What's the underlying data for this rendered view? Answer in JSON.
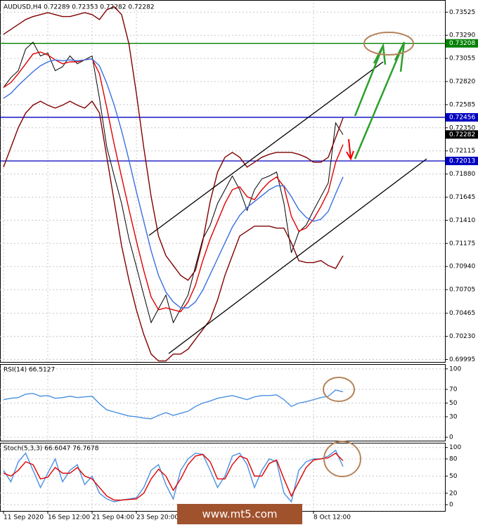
{
  "watermark": "www.mt5.com",
  "chart_data": [
    {
      "type": "line",
      "title": "AUDUSD,H4 0.72289 0.72353 0.72282 0.72282",
      "categories": [
        "11 Sep 2020",
        null,
        null,
        null,
        null,
        null,
        "16 Sep 12:00",
        null,
        null,
        null,
        null,
        null,
        "21 Sep 04:00",
        null,
        null,
        null,
        null,
        null,
        "23 Sep 20:00",
        null,
        null,
        null,
        null,
        null,
        null,
        null,
        null,
        null,
        null,
        null,
        null,
        null,
        null,
        null,
        null,
        null,
        null,
        null,
        null,
        null,
        null,
        null,
        "8 Oct 12:00",
        null,
        null,
        null,
        null
      ],
      "ylim": [
        0.6997,
        0.7362
      ],
      "yticks": [
        0.73525,
        {
          "value": 0.7329,
          "label": "0.73290"
        },
        0.73055,
        {
          "value": 0.7282,
          "label": "0.72820"
        },
        0.72585,
        {
          "value": 0.7235,
          "label": "0.72350"
        },
        0.72115,
        {
          "value": 0.7188,
          "label": "0.71880"
        },
        0.71645,
        {
          "value": 0.7141,
          "label": "0.71410"
        },
        0.71175,
        {
          "value": 0.7094,
          "label": "0.70940"
        },
        0.70705,
        0.70465,
        {
          "value": 0.7023,
          "label": "0.70230"
        },
        0.69995
      ],
      "grid": true,
      "levels": [
        {
          "value": 0.73208,
          "color": "#008000"
        },
        {
          "value": 0.72456,
          "color": "#0000c0"
        },
        {
          "value": 0.72013,
          "color": "#0000c0"
        },
        {
          "value": 0.72282,
          "color": "#000000"
        }
      ],
      "series": [
        {
          "color": "#000000",
          "values": [
            0.7276,
            0.7286,
            0.7293,
            0.7315,
            0.7322,
            0.7308,
            0.7311,
            0.7293,
            0.7297,
            0.7308,
            0.73,
            0.7304,
            0.7308,
            0.7265,
            0.7215,
            0.7186,
            0.7158,
            0.7122,
            0.7094,
            0.7065,
            0.7037,
            0.7051,
            0.7065,
            0.7037,
            0.7051,
            0.7065,
            0.7094,
            0.7122,
            0.7136,
            0.7158,
            0.7172,
            0.7186,
            0.7172,
            0.7151,
            0.7172,
            0.7183,
            0.7186,
            0.719,
            0.7158,
            0.7108,
            0.7129,
            0.7136,
            0.7151,
            0.7165,
            0.7179,
            0.724,
            0.7228
          ]
        },
        {
          "color": "#e00000",
          "values": [
            0.7276,
            0.7281,
            0.729,
            0.73,
            0.731,
            0.7312,
            0.7309,
            0.7304,
            0.73,
            0.7302,
            0.7302,
            0.7304,
            0.7305,
            0.729,
            0.7255,
            0.7218,
            0.7185,
            0.7152,
            0.712,
            0.709,
            0.7063,
            0.705,
            0.7052,
            0.705,
            0.7048,
            0.7058,
            0.7075,
            0.71,
            0.7122,
            0.714,
            0.7158,
            0.7172,
            0.7175,
            0.7165,
            0.7162,
            0.7172,
            0.718,
            0.7185,
            0.7175,
            0.7145,
            0.713,
            0.7133,
            0.7142,
            0.7155,
            0.717,
            0.72,
            0.7218
          ]
        },
        {
          "color": "#3a6fe0",
          "values": [
            0.7265,
            0.727,
            0.7278,
            0.7285,
            0.7292,
            0.7298,
            0.7302,
            0.7304,
            0.7303,
            0.7304,
            0.7303,
            0.7304,
            0.7305,
            0.7298,
            0.728,
            0.7258,
            0.7232,
            0.7202,
            0.717,
            0.714,
            0.711,
            0.7085,
            0.7068,
            0.7058,
            0.7052,
            0.7052,
            0.7058,
            0.707,
            0.7086,
            0.7102,
            0.7118,
            0.7134,
            0.7146,
            0.7154,
            0.716,
            0.7166,
            0.7172,
            0.7176,
            0.7176,
            0.7165,
            0.7152,
            0.7144,
            0.714,
            0.7142,
            0.715,
            0.7168,
            0.7185
          ]
        },
        {
          "color": "#800000",
          "values": [
            0.733,
            0.7335,
            0.734,
            0.7345,
            0.7348,
            0.735,
            0.7352,
            0.735,
            0.7348,
            0.7348,
            0.735,
            0.7352,
            0.735,
            0.7345,
            0.7355,
            0.7358,
            0.735,
            0.732,
            0.727,
            0.7215,
            0.7165,
            0.7125,
            0.7105,
            0.7095,
            0.7085,
            0.708,
            0.709,
            0.712,
            0.716,
            0.719,
            0.7205,
            0.721,
            0.7205,
            0.7195,
            0.72,
            0.7205,
            0.7208,
            0.721,
            0.721,
            0.721,
            0.7208,
            0.7205,
            0.72,
            0.72,
            0.7205,
            0.7225,
            0.7245
          ]
        },
        {
          "color": "#800000",
          "values": [
            0.7195,
            0.7215,
            0.7235,
            0.725,
            0.7258,
            0.7262,
            0.7258,
            0.7255,
            0.7258,
            0.7262,
            0.7258,
            0.7255,
            0.7262,
            0.725,
            0.7205,
            0.716,
            0.7115,
            0.708,
            0.705,
            0.7025,
            0.7005,
            0.6998,
            0.6998,
            0.7005,
            0.7005,
            0.701,
            0.702,
            0.703,
            0.704,
            0.706,
            0.7085,
            0.7105,
            0.7125,
            0.713,
            0.7135,
            0.7135,
            0.7135,
            0.7133,
            0.7133,
            0.7118,
            0.71,
            0.7098,
            0.7098,
            0.71,
            0.7095,
            0.7092,
            0.7105
          ]
        }
      ]
    },
    {
      "type": "line",
      "title": "RSI(14) 66.5127",
      "ylim": [
        -5,
        106
      ],
      "yticks": [
        0,
        30,
        50,
        70,
        100
      ],
      "grid": true,
      "series": [
        {
          "color": "#4a90e2",
          "values": [
            55,
            57,
            58,
            63,
            64,
            60,
            61,
            57,
            58,
            60,
            58,
            59,
            60,
            49,
            40,
            37,
            34,
            31,
            30,
            28,
            27,
            32,
            36,
            32,
            35,
            38,
            45,
            50,
            53,
            57,
            59,
            61,
            58,
            55,
            59,
            61,
            61,
            62,
            55,
            45,
            50,
            52,
            55,
            58,
            60,
            69,
            66.5
          ]
        }
      ]
    },
    {
      "type": "line",
      "title": "Stoch(5,3,3) 66.6047 76.7678",
      "ylim": [
        -11,
        107
      ],
      "yticks": [
        0,
        20,
        50,
        80,
        100
      ],
      "grid": true,
      "series": [
        {
          "color": "#4a90e2",
          "values": [
            60,
            40,
            75,
            90,
            60,
            30,
            55,
            80,
            40,
            60,
            70,
            35,
            50,
            20,
            10,
            5,
            8,
            10,
            12,
            30,
            60,
            70,
            35,
            10,
            60,
            80,
            90,
            88,
            60,
            30,
            50,
            85,
            90,
            70,
            30,
            60,
            80,
            75,
            20,
            5,
            60,
            75,
            80,
            80,
            85,
            95,
            66.6
          ]
        },
        {
          "color": "#e00000",
          "values": [
            55,
            50,
            60,
            75,
            70,
            45,
            48,
            65,
            55,
            55,
            65,
            50,
            45,
            30,
            15,
            8,
            8,
            9,
            10,
            20,
            45,
            62,
            50,
            25,
            45,
            70,
            85,
            88,
            75,
            45,
            45,
            70,
            85,
            80,
            50,
            50,
            72,
            78,
            45,
            15,
            40,
            65,
            78,
            80,
            82,
            90,
            76.8
          ]
        }
      ]
    }
  ]
}
